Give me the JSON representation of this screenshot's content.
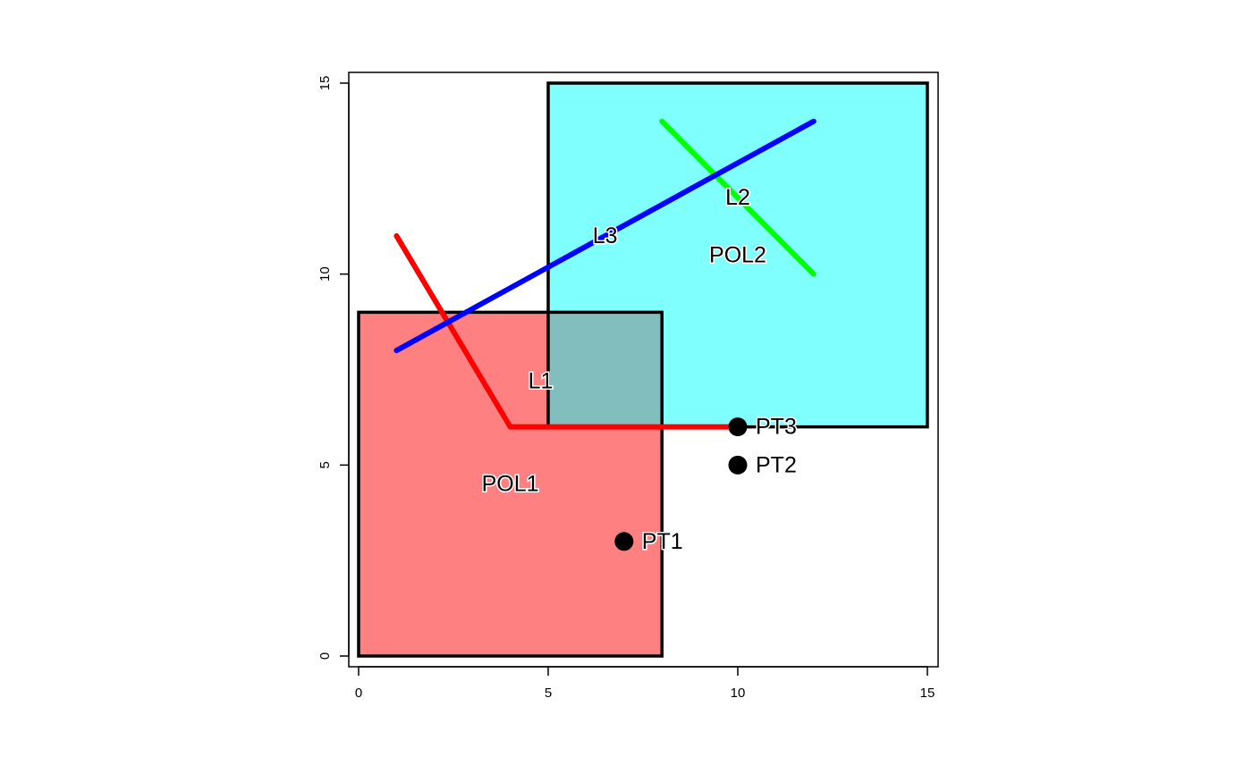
{
  "chart_data": {
    "type": "scatter",
    "title": "",
    "xlabel": "",
    "ylabel": "",
    "xlim": [
      0,
      15
    ],
    "ylim": [
      0,
      15
    ],
    "x_ticks": [
      0,
      5,
      10,
      15
    ],
    "y_ticks": [
      0,
      5,
      10,
      15
    ],
    "polygons": [
      {
        "name": "POL1",
        "fill": "#ff8080",
        "stroke": "#000000",
        "points": [
          [
            0,
            0
          ],
          [
            8,
            0
          ],
          [
            8,
            9
          ],
          [
            0,
            9
          ]
        ],
        "label_pos": [
          4,
          4.5
        ]
      },
      {
        "name": "POL2",
        "fill": "#80ffff",
        "stroke": "#000000",
        "points": [
          [
            5,
            6
          ],
          [
            15,
            6
          ],
          [
            15,
            15
          ],
          [
            5,
            15
          ]
        ],
        "label_pos": [
          10,
          10.5
        ]
      }
    ],
    "overlap_fill": "#82bebe",
    "lines": [
      {
        "name": "L1",
        "color": "#ff0000",
        "points": [
          [
            1,
            11
          ],
          [
            4,
            6
          ],
          [
            10,
            6
          ]
        ],
        "label_pos": [
          4.8,
          7.2
        ]
      },
      {
        "name": "L2",
        "color": "#00ff00",
        "points": [
          [
            8,
            14
          ],
          [
            12,
            10
          ]
        ],
        "label_pos": [
          10,
          12
        ]
      },
      {
        "name": "L3",
        "color": "#0000ff",
        "points": [
          [
            1,
            8
          ],
          [
            12,
            14
          ]
        ],
        "label_pos": [
          6.5,
          11
        ]
      }
    ],
    "points": [
      {
        "name": "PT1",
        "x": 7,
        "y": 3
      },
      {
        "name": "PT2",
        "x": 10,
        "y": 5
      },
      {
        "name": "PT3",
        "x": 10,
        "y": 6
      }
    ],
    "point_color": "#000000"
  }
}
